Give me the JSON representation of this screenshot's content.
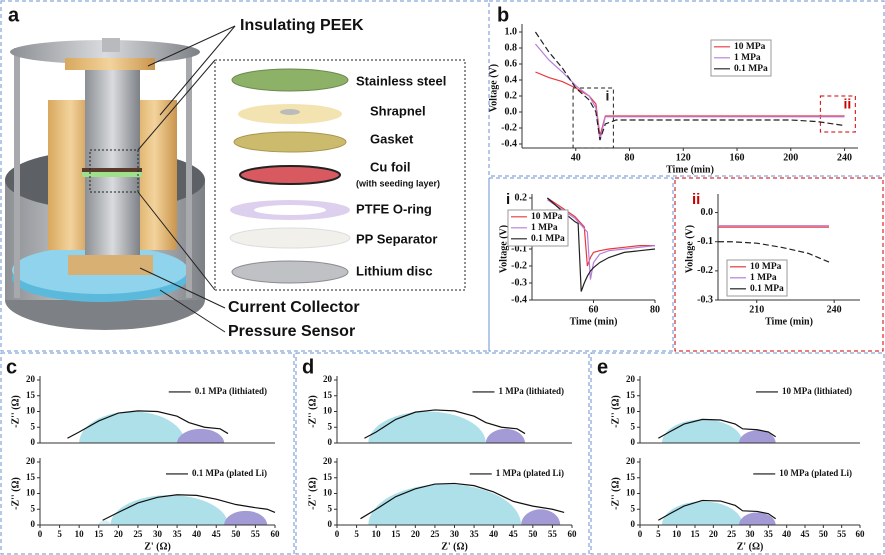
{
  "panel_labels": [
    "a",
    "b",
    "c",
    "d",
    "e"
  ],
  "illustration": {
    "callouts": [
      "Insulating PEEK",
      "Current Collector",
      "Pressure Sensor"
    ],
    "layers": [
      {
        "label": "Stainless steel"
      },
      {
        "label": "Shrapnel"
      },
      {
        "label": "Gasket"
      },
      {
        "label": "Cu foil",
        "note": "(with seeding layer)"
      },
      {
        "label": "PTFE O-ring"
      },
      {
        "label": "PP Separator"
      },
      {
        "label": "Lithium disc"
      }
    ]
  },
  "chart_data": [
    {
      "type": "line",
      "xlabel": "Time (min)",
      "ylabel": "Voltage (V)",
      "x": [
        10,
        20,
        30,
        40,
        50,
        55,
        58,
        62,
        70,
        100,
        150,
        200,
        220,
        240
      ],
      "series": [
        {
          "name": "10 MPa",
          "color": "#e8383d",
          "values": [
            0.5,
            0.43,
            0.38,
            0.3,
            0.2,
            0.1,
            -0.3,
            -0.05,
            -0.05,
            -0.05,
            -0.05,
            -0.05,
            -0.05,
            -0.05
          ]
        },
        {
          "name": "1 MPa",
          "color": "#b57edc",
          "values": [
            0.85,
            0.65,
            0.5,
            0.33,
            0.2,
            0.05,
            -0.35,
            -0.06,
            -0.06,
            -0.06,
            -0.06,
            -0.06,
            -0.06,
            -0.06
          ]
        },
        {
          "name": "0.1 MPa",
          "color": "#222222",
          "dashed": true,
          "values": [
            1.0,
            0.75,
            0.55,
            0.3,
            0.15,
            0.0,
            -0.35,
            -0.15,
            -0.1,
            -0.1,
            -0.1,
            -0.1,
            -0.12,
            -0.17
          ]
        }
      ],
      "xlim": [
        0,
        250
      ],
      "ylim": [
        -0.45,
        1.05
      ],
      "xticks": [
        40,
        80,
        120,
        160,
        200,
        240
      ],
      "yticks": [
        -0.4,
        -0.2,
        {
          "value": 0,
          "label": "0.0"
        },
        0.2,
        0.4,
        0.6,
        0.8,
        {
          "value": 1,
          "label": "1.0"
        }
      ],
      "regions": [
        {
          "label": "i",
          "x": [
            38,
            68
          ],
          "y": [
            -0.45,
            0.3
          ],
          "color": "#222222"
        },
        {
          "label": "ii",
          "x": [
            222,
            248
          ],
          "y": [
            -0.25,
            0.2
          ],
          "color": "#cc0000"
        }
      ],
      "legend": "upper right",
      "legend_frame": true
    },
    {
      "type": "line",
      "title": "i",
      "xlabel": "Time (min)",
      "ylabel": "Voltage (V)",
      "x": [
        45,
        50,
        54,
        55,
        56,
        57,
        58,
        59,
        60,
        62,
        65,
        70,
        75,
        80
      ],
      "series": [
        {
          "name": "10 MPa",
          "color": "#e8383d",
          "values": [
            0.2,
            0.14,
            0.09,
            0.07,
            0.05,
            0.03,
            -0.2,
            -0.15,
            -0.12,
            -0.11,
            -0.1,
            -0.09,
            -0.08,
            -0.08
          ]
        },
        {
          "name": "1 MPa",
          "color": "#b57edc",
          "values": [
            0.19,
            0.13,
            0.08,
            0.06,
            0.04,
            0.02,
            0.0,
            -0.28,
            -0.18,
            -0.13,
            -0.11,
            -0.1,
            -0.09,
            -0.08
          ]
        },
        {
          "name": "0.1 MPa",
          "color": "#222222",
          "values": [
            0.2,
            0.12,
            0.06,
            0.05,
            -0.35,
            -0.3,
            -0.26,
            -0.23,
            -0.21,
            -0.18,
            -0.15,
            -0.12,
            -0.11,
            -0.1
          ]
        }
      ],
      "xlim": [
        40,
        80
      ],
      "ylim": [
        -0.4,
        0.2
      ],
      "xticks": [
        60,
        80
      ],
      "yticks": [
        -0.4,
        -0.3,
        -0.2,
        -0.1,
        {
          "value": 0,
          "label": "0.0"
        },
        0.1,
        0.2
      ],
      "legend": "upper right",
      "legend_frame": true
    },
    {
      "type": "line",
      "title": "ii",
      "title_color": "#cc0000",
      "xlabel": "Time (min)",
      "ylabel": "Voltage (V)",
      "x": [
        195,
        200,
        210,
        220,
        230,
        238
      ],
      "series": [
        {
          "name": "10 MPa",
          "color": "#e8383d",
          "values": [
            -0.05,
            -0.05,
            -0.05,
            -0.05,
            -0.05,
            -0.05
          ]
        },
        {
          "name": "1 MPa",
          "color": "#b57edc",
          "values": [
            -0.045,
            -0.045,
            -0.045,
            -0.045,
            -0.045,
            -0.045
          ]
        },
        {
          "name": "0.1 MPa",
          "color": "#222222",
          "dashed": true,
          "values": [
            -0.1,
            -0.1,
            -0.105,
            -0.12,
            -0.14,
            -0.17
          ]
        }
      ],
      "xlim": [
        195,
        250
      ],
      "ylim": [
        -0.3,
        0.05
      ],
      "xticks": [
        210,
        240
      ],
      "yticks": [
        -0.3,
        -0.2,
        -0.1,
        {
          "value": 0,
          "label": "0.0"
        }
      ],
      "legend": "lower left",
      "legend_frame": true
    },
    {
      "type": "line",
      "ylabel": "-Z'' (Ω)",
      "x": [
        7,
        10,
        15,
        20,
        25,
        30,
        35,
        38,
        42,
        46,
        48
      ],
      "series": [
        {
          "name": "0.1 MPa (lithiated)",
          "color": "#111111",
          "values": [
            1.5,
            3.5,
            7,
            9.5,
            10.2,
            10,
            8.5,
            6.5,
            5,
            4.5,
            3
          ]
        }
      ],
      "arcs": [
        {
          "from": 10,
          "to": 37,
          "height": 10,
          "color": "#aee0ea"
        },
        {
          "from": 35,
          "to": 47,
          "height": 4.5,
          "color": "#a39bd6"
        }
      ],
      "xlim": [
        0,
        60
      ],
      "ylim": [
        0,
        20
      ],
      "yticks": [
        0,
        5,
        10,
        15,
        20
      ],
      "legend": "upper right"
    },
    {
      "type": "line",
      "ylabel": "-Z'' (Ω)",
      "xlabel": "Z' (Ω)",
      "x": [
        16,
        20,
        25,
        30,
        35,
        40,
        45,
        50,
        55,
        58,
        60
      ],
      "series": [
        {
          "name": "0.1 MPa (plated Li)",
          "color": "#111111",
          "values": [
            1.5,
            4,
            7,
            8.8,
            9.6,
            9.4,
            8.2,
            6.5,
            5.5,
            5,
            4
          ]
        }
      ],
      "arcs": [
        {
          "from": 15,
          "to": 18,
          "height": 1.5,
          "color": "#d5eff4"
        },
        {
          "from": 18,
          "to": 48,
          "height": 9.5,
          "color": "#aee0ea"
        },
        {
          "from": 47,
          "to": 58,
          "height": 4.5,
          "color": "#a39bd6"
        }
      ],
      "xlim": [
        0,
        60
      ],
      "ylim": [
        0,
        20
      ],
      "xticks": [
        0,
        5,
        10,
        15,
        20,
        25,
        30,
        35,
        40,
        45,
        50,
        55,
        60
      ],
      "yticks": [
        0,
        5,
        10,
        15,
        20
      ],
      "legend": "upper right"
    },
    {
      "type": "line",
      "ylabel": "-Z'' (Ω)",
      "x": [
        7,
        10,
        15,
        20,
        25,
        30,
        35,
        38,
        42,
        46,
        48
      ],
      "series": [
        {
          "name": "1 MPa (lithiated)",
          "color": "#111111",
          "values": [
            1.5,
            3.5,
            7.5,
            9.8,
            10.5,
            10.2,
            8.5,
            6.5,
            5,
            4.5,
            3
          ]
        }
      ],
      "arcs": [
        {
          "from": 8,
          "to": 38,
          "height": 10,
          "color": "#aee0ea"
        },
        {
          "from": 38,
          "to": 48,
          "height": 4.5,
          "color": "#a39bd6"
        }
      ],
      "xlim": [
        0,
        60
      ],
      "ylim": [
        0,
        20
      ],
      "yticks": [
        0,
        5,
        10,
        15,
        20
      ],
      "legend": "upper right"
    },
    {
      "type": "line",
      "ylabel": "-Z'' (Ω)",
      "xlabel": "Z' (Ω)",
      "x": [
        6,
        10,
        15,
        20,
        25,
        30,
        35,
        40,
        45,
        50,
        55,
        58
      ],
      "series": [
        {
          "name": "1 MPa (plated Li)",
          "color": "#111111",
          "values": [
            2,
            5,
            9,
            11.5,
            13,
            13.2,
            12.5,
            10.5,
            7.5,
            6,
            5,
            4
          ]
        }
      ],
      "arcs": [
        {
          "from": 8,
          "to": 47,
          "height": 13,
          "color": "#aee0ea"
        },
        {
          "from": 47,
          "to": 57,
          "height": 5,
          "color": "#a39bd6"
        }
      ],
      "xlim": [
        0,
        60
      ],
      "ylim": [
        0,
        20
      ],
      "xticks": [
        0,
        5,
        10,
        15,
        20,
        25,
        30,
        35,
        40,
        45,
        50,
        55,
        60
      ],
      "yticks": [
        0,
        5,
        10,
        15,
        20
      ],
      "legend": "upper right"
    },
    {
      "type": "line",
      "ylabel": "-Z'' (Ω)",
      "x": [
        5,
        8,
        12,
        17,
        22,
        26,
        28,
        32,
        35,
        37
      ],
      "series": [
        {
          "name": "10 MPa (lithiated)",
          "color": "#111111",
          "values": [
            1.5,
            3.5,
            6,
            7.5,
            7.3,
            6,
            4.5,
            4.2,
            3.5,
            2
          ]
        }
      ],
      "arcs": [
        {
          "from": 6,
          "to": 28,
          "height": 7.5,
          "color": "#aee0ea"
        },
        {
          "from": 27,
          "to": 37,
          "height": 4,
          "color": "#a39bd6"
        }
      ],
      "xlim": [
        0,
        60
      ],
      "ylim": [
        0,
        20
      ],
      "yticks": [
        0,
        5,
        10,
        15,
        20
      ],
      "legend": "upper right"
    },
    {
      "type": "line",
      "ylabel": "-Z'' (Ω)",
      "xlabel": "Z' (Ω)",
      "x": [
        5,
        8,
        12,
        17,
        22,
        26,
        28,
        32,
        35,
        37
      ],
      "series": [
        {
          "name": "10 MPa (plated Li)",
          "color": "#111111",
          "values": [
            1.5,
            3.5,
            6,
            7.8,
            7.6,
            6.2,
            4.5,
            4.3,
            3.6,
            2
          ]
        }
      ],
      "arcs": [
        {
          "from": 6,
          "to": 28,
          "height": 7.5,
          "color": "#aee0ea"
        },
        {
          "from": 27,
          "to": 37,
          "height": 4,
          "color": "#a39bd6"
        }
      ],
      "xlim": [
        0,
        60
      ],
      "ylim": [
        0,
        20
      ],
      "xticks": [
        0,
        5,
        10,
        15,
        20,
        25,
        30,
        35,
        40,
        45,
        50,
        55,
        60
      ],
      "yticks": [
        0,
        5,
        10,
        15,
        20
      ],
      "legend": "upper right"
    }
  ]
}
